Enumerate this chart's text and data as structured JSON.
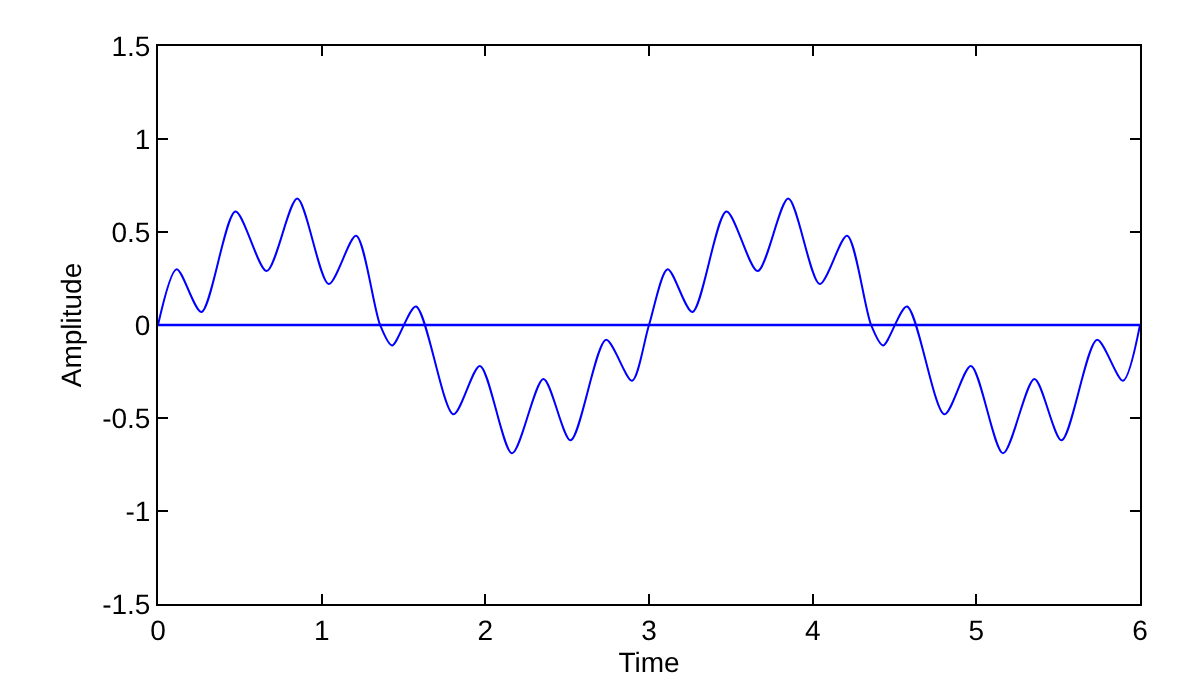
{
  "chart_data": {
    "type": "line",
    "xlabel": "Time",
    "ylabel": "Amplitude",
    "x": [
      0,
      0.114,
      0.265,
      0.473,
      0.664,
      0.851,
      1.043,
      1.21,
      1.357,
      1.43,
      1.576,
      1.805,
      1.967,
      2.163,
      2.355,
      2.521,
      2.737,
      2.896,
      3.0,
      3.114,
      3.265,
      3.473,
      3.664,
      3.851,
      4.043,
      4.21,
      4.357,
      4.43,
      4.576,
      4.805,
      4.967,
      5.163,
      5.355,
      5.521,
      5.737,
      5.896,
      6.0
    ],
    "series": [
      {
        "color": "#0000ff",
        "values": [
          0,
          0.3,
          0.07,
          0.61,
          0.29,
          0.68,
          0.22,
          0.48,
          0,
          -0.11,
          0.1,
          -0.48,
          -0.22,
          -0.69,
          -0.29,
          -0.62,
          -0.08,
          -0.3,
          0,
          0.3,
          0.07,
          0.61,
          0.29,
          0.68,
          0.22,
          0.48,
          0,
          -0.11,
          0.1,
          -0.48,
          -0.22,
          -0.69,
          -0.29,
          -0.62,
          -0.08,
          -0.3,
          0
        ]
      }
    ],
    "ref_lines": [
      {
        "axis": "y",
        "value": 0,
        "color": "#0000ff"
      }
    ],
    "xlim": [
      0,
      6
    ],
    "xticks": [
      0,
      1,
      2,
      3,
      4,
      5,
      6
    ],
    "ylim": [
      -1.5,
      1.5
    ],
    "yticks": [
      -1.5,
      -1,
      -0.5,
      0,
      0.5,
      1,
      1.5
    ],
    "marker": "none",
    "line_style": "solid"
  }
}
